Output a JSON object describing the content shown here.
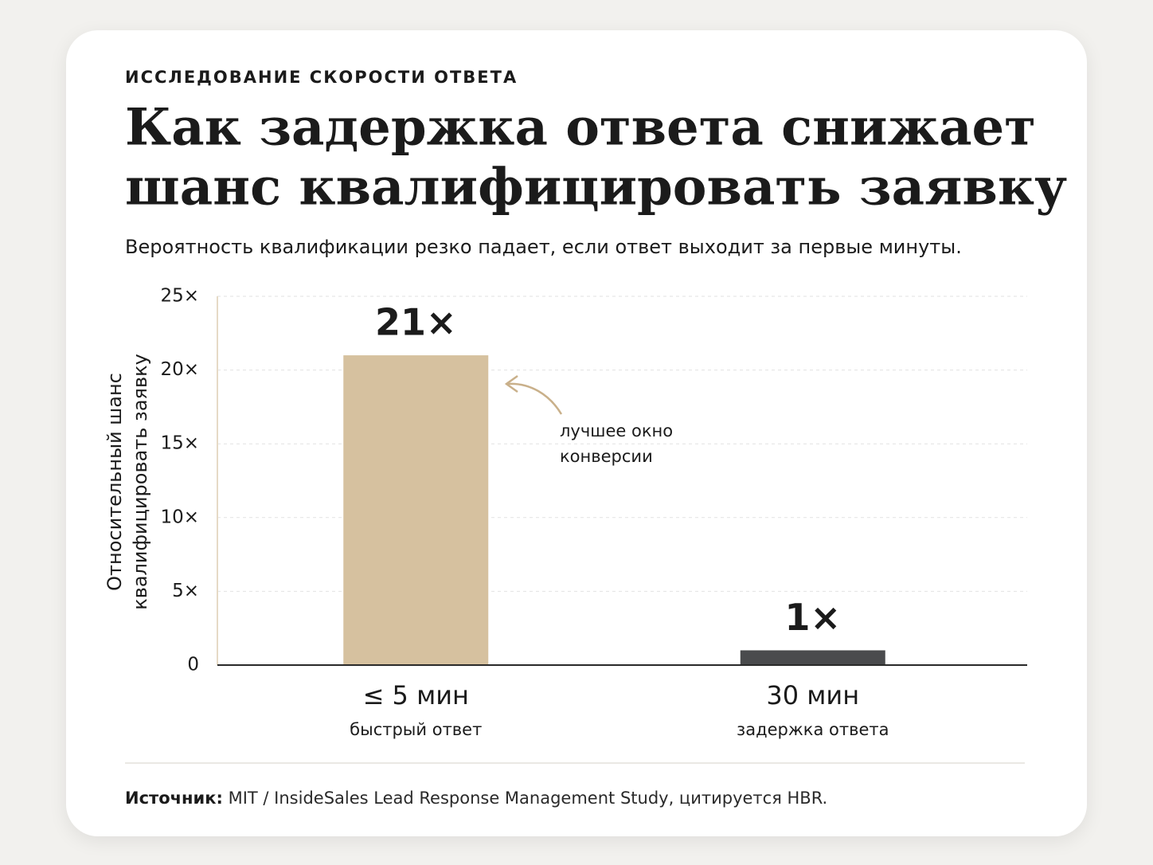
{
  "chart_data": {
    "type": "bar",
    "kicker": "ИССЛЕДОВАНИЕ СКОРОСТИ ОТВЕТА",
    "title": [
      "Как задержка ответа снижает",
      "шанс квалифицировать заявку"
    ],
    "subtitle": "Вероятность квалификации резко падает, если ответ выходит за первые минуты.",
    "y_label": [
      "Относительный шанс",
      "квалифицировать заявку"
    ],
    "categories": [
      "≤ 5 мин",
      "30 мин"
    ],
    "category_sublabels": [
      "быстрый ответ",
      "задержка ответа"
    ],
    "values": [
      21,
      1
    ],
    "value_labels": [
      "21×",
      "1×"
    ],
    "colors": [
      "#d6c19f",
      "#4a4b4d"
    ],
    "ylim": [
      0,
      25
    ],
    "yticks": [
      0,
      {
        "value": 5,
        "label": "5×"
      },
      {
        "value": 10,
        "label": "10×"
      },
      {
        "value": 15,
        "label": "15×"
      },
      {
        "value": 20,
        "label": "20×"
      },
      {
        "value": 25,
        "label": "25×"
      }
    ],
    "grid": true,
    "annotation": [
      "лучшее окно",
      "конверсии"
    ],
    "source": {
      "label": "Источник:",
      "text": "MIT / InsideSales Lead Response Management Study, цитируется HBR."
    }
  }
}
